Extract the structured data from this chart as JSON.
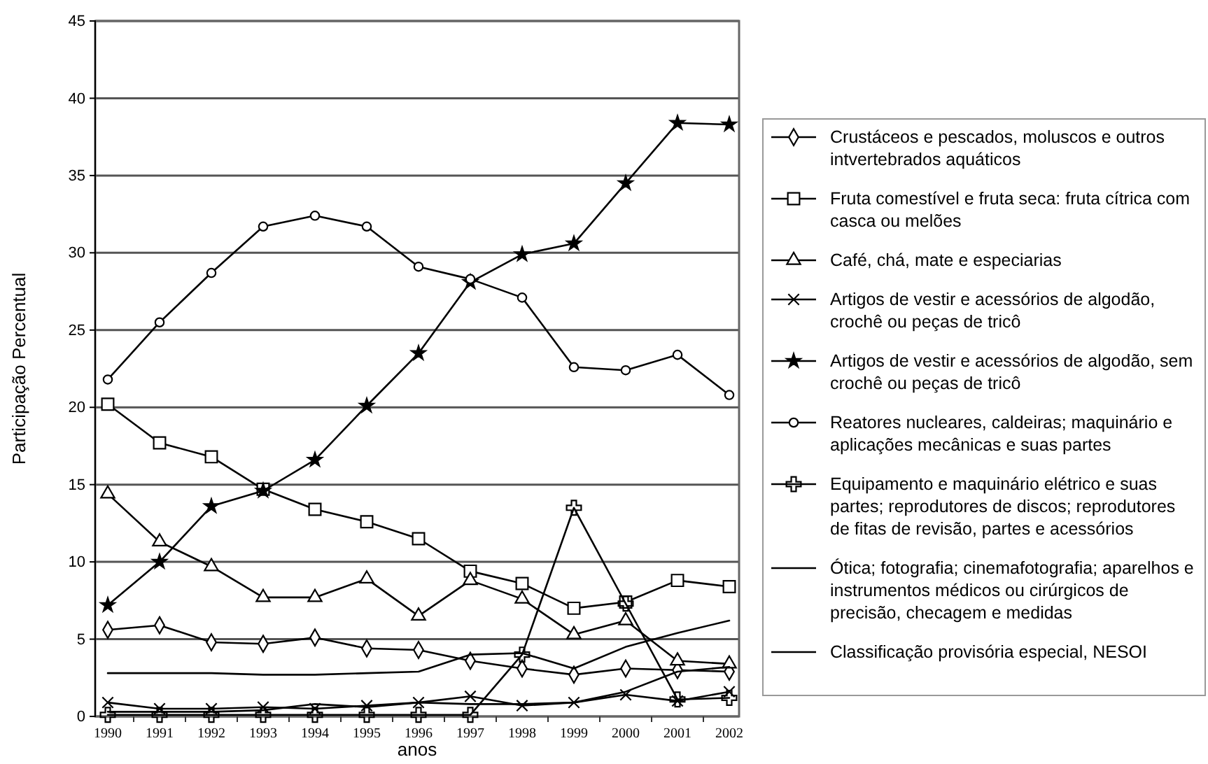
{
  "chart_data": {
    "type": "line",
    "xlabel": "anos",
    "ylabel": "Participação Percentual",
    "categories": [
      "1990",
      "1991",
      "1992",
      "1993",
      "1994",
      "1995",
      "1996",
      "1997",
      "1998",
      "1999",
      "2000",
      "2001",
      "2002"
    ],
    "ylim": [
      0,
      45
    ],
    "yticks": [
      0,
      5,
      10,
      15,
      20,
      25,
      30,
      35,
      40,
      45
    ],
    "grid": "y",
    "legend": "right",
    "series": [
      {
        "name": "Crustáceos e pescados, moluscos e outros intvertebrados aquáticos",
        "color": "#000000",
        "marker": "diamond",
        "values": [
          5.6,
          5.9,
          4.8,
          4.7,
          5.1,
          4.4,
          4.3,
          3.6,
          3.1,
          2.7,
          3.1,
          3.0,
          2.9
        ]
      },
      {
        "name": "Fruta comestível e fruta seca: fruta cítrica com casca ou melões",
        "color": "#000000",
        "marker": "square",
        "values": [
          20.2,
          17.7,
          16.8,
          14.7,
          13.4,
          12.6,
          11.5,
          9.4,
          8.6,
          7.0,
          7.4,
          8.8,
          8.4
        ]
      },
      {
        "name": "Café, chá, mate e especiarias",
        "color": "#000000",
        "marker": "triangle",
        "values": [
          14.4,
          11.3,
          9.7,
          7.7,
          7.7,
          8.9,
          6.5,
          8.8,
          7.6,
          5.3,
          6.2,
          3.6,
          3.4
        ]
      },
      {
        "name": "Artigos de vestir e acessórios de algodão, crochê ou peças de tricô",
        "color": "#000000",
        "marker": "cross",
        "values": [
          0.9,
          0.5,
          0.5,
          0.6,
          0.5,
          0.7,
          0.9,
          1.3,
          0.7,
          0.9,
          1.4,
          1.0,
          1.6
        ]
      },
      {
        "name": "Artigos de vestir e acessórios de algodão, sem crochê ou peças de tricô",
        "color": "#000000",
        "marker": "star",
        "values": [
          7.2,
          10.0,
          13.6,
          14.6,
          16.6,
          20.1,
          23.5,
          28.1,
          29.9,
          30.6,
          34.5,
          38.4,
          38.3
        ]
      },
      {
        "name": "Reatores nucleares, caldeiras; maquinário e aplicações mecânicas e suas partes",
        "color": "#000000",
        "marker": "circle",
        "values": [
          21.8,
          25.5,
          28.7,
          31.7,
          32.4,
          31.7,
          29.1,
          28.3,
          27.1,
          22.6,
          22.4,
          23.4,
          20.8
        ]
      },
      {
        "name": "Equipamento e maquinário elétrico e suas partes; reprodutores de discos; reprodutores de fitas de revisão, partes e acessórios",
        "color": "#000000",
        "marker": "plus",
        "values": [
          0.1,
          0.1,
          0.1,
          0.1,
          0.1,
          0.1,
          0.1,
          0.1,
          4.0,
          13.5,
          7.3,
          1.1,
          1.2
        ]
      },
      {
        "name": "Ótica; fotografia; cinemafotografia; aparelhos e instrumentos médicos ou cirúrgicos de precisão, checagem e medidas",
        "color": "#000000",
        "marker": "none",
        "values": [
          2.8,
          2.8,
          2.8,
          2.7,
          2.7,
          2.8,
          2.9,
          4.0,
          4.1,
          3.1,
          4.5,
          5.4,
          6.2
        ]
      },
      {
        "name": "Classificação provisória especial, NESOI",
        "color": "#000000",
        "marker": "none",
        "values": [
          0.3,
          0.3,
          0.3,
          0.4,
          0.8,
          0.6,
          0.9,
          0.8,
          0.8,
          0.9,
          1.6,
          2.9,
          3.2
        ]
      }
    ]
  }
}
